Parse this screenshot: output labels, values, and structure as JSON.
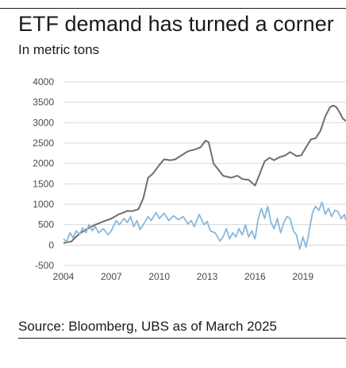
{
  "header": {
    "title": "ETF demand has turned a corner",
    "subtitle": "In metric tons"
  },
  "footer": {
    "source": "Source: Bloomberg, UBS as of March 2025"
  },
  "chart_data": {
    "type": "line",
    "title": "ETF demand has turned a corner",
    "subtitle": "In metric tons",
    "xlabel": "",
    "ylabel": "",
    "xlim": [
      2004,
      2021.7
    ],
    "ylim": [
      -500,
      4000
    ],
    "y_ticks": [
      "4000",
      "3500",
      "3000",
      "2500",
      "2000",
      "1500",
      "1000",
      "500",
      "0",
      "-500"
    ],
    "x_ticks": [
      "2004",
      "2007",
      "2010",
      "2013",
      "2016",
      "2019"
    ],
    "grid": "horizontal",
    "legend": "none",
    "series": [
      {
        "color": "#6e6e6e",
        "points": [
          [
            2004.0,
            50
          ],
          [
            2004.5,
            90
          ],
          [
            2004.8,
            210
          ],
          [
            2005.0,
            280
          ],
          [
            2005.5,
            400
          ],
          [
            2006.0,
            500
          ],
          [
            2006.5,
            580
          ],
          [
            2007.0,
            650
          ],
          [
            2007.5,
            760
          ],
          [
            2007.8,
            800
          ],
          [
            2008.0,
            840
          ],
          [
            2008.3,
            830
          ],
          [
            2008.7,
            880
          ],
          [
            2009.0,
            1150
          ],
          [
            2009.3,
            1650
          ],
          [
            2009.6,
            1750
          ],
          [
            2010.0,
            1960
          ],
          [
            2010.3,
            2100
          ],
          [
            2010.7,
            2080
          ],
          [
            2011.0,
            2100
          ],
          [
            2011.4,
            2200
          ],
          [
            2011.8,
            2300
          ],
          [
            2012.3,
            2350
          ],
          [
            2012.6,
            2400
          ],
          [
            2012.9,
            2560
          ],
          [
            2013.1,
            2520
          ],
          [
            2013.4,
            2000
          ],
          [
            2013.7,
            1850
          ],
          [
            2014.0,
            1700
          ],
          [
            2014.5,
            1650
          ],
          [
            2014.9,
            1700
          ],
          [
            2015.2,
            1620
          ],
          [
            2015.6,
            1600
          ],
          [
            2016.0,
            1460
          ],
          [
            2016.3,
            1750
          ],
          [
            2016.6,
            2050
          ],
          [
            2016.9,
            2140
          ],
          [
            2017.2,
            2080
          ],
          [
            2017.5,
            2150
          ],
          [
            2017.9,
            2200
          ],
          [
            2018.2,
            2280
          ],
          [
            2018.6,
            2180
          ],
          [
            2018.9,
            2200
          ],
          [
            2019.2,
            2400
          ],
          [
            2019.5,
            2590
          ],
          [
            2019.8,
            2620
          ],
          [
            2020.1,
            2800
          ],
          [
            2020.4,
            3150
          ],
          [
            2020.7,
            3380
          ],
          [
            2020.9,
            3420
          ],
          [
            2021.1,
            3380
          ],
          [
            2021.3,
            3250
          ],
          [
            2021.5,
            3100
          ],
          [
            2021.7,
            3040
          ]
        ]
      },
      {
        "color": "#88b8db",
        "points": [
          [
            2004.0,
            150
          ],
          [
            2004.2,
            80
          ],
          [
            2004.4,
            300
          ],
          [
            2004.6,
            180
          ],
          [
            2004.8,
            350
          ],
          [
            2005.0,
            250
          ],
          [
            2005.2,
            420
          ],
          [
            2005.4,
            300
          ],
          [
            2005.6,
            500
          ],
          [
            2005.8,
            350
          ],
          [
            2006.0,
            450
          ],
          [
            2006.2,
            300
          ],
          [
            2006.5,
            400
          ],
          [
            2006.8,
            250
          ],
          [
            2007.0,
            350
          ],
          [
            2007.3,
            600
          ],
          [
            2007.5,
            500
          ],
          [
            2007.8,
            650
          ],
          [
            2008.0,
            550
          ],
          [
            2008.2,
            700
          ],
          [
            2008.4,
            450
          ],
          [
            2008.6,
            600
          ],
          [
            2008.8,
            380
          ],
          [
            2009.0,
            500
          ],
          [
            2009.3,
            700
          ],
          [
            2009.5,
            600
          ],
          [
            2009.8,
            800
          ],
          [
            2010.0,
            650
          ],
          [
            2010.3,
            780
          ],
          [
            2010.6,
            600
          ],
          [
            2010.9,
            720
          ],
          [
            2011.2,
            620
          ],
          [
            2011.5,
            700
          ],
          [
            2011.8,
            520
          ],
          [
            2012.0,
            600
          ],
          [
            2012.2,
            450
          ],
          [
            2012.5,
            750
          ],
          [
            2012.8,
            500
          ],
          [
            2013.0,
            580
          ],
          [
            2013.2,
            350
          ],
          [
            2013.5,
            300
          ],
          [
            2013.8,
            100
          ],
          [
            2014.0,
            200
          ],
          [
            2014.2,
            400
          ],
          [
            2014.4,
            150
          ],
          [
            2014.6,
            300
          ],
          [
            2014.8,
            200
          ],
          [
            2015.0,
            400
          ],
          [
            2015.2,
            250
          ],
          [
            2015.4,
            500
          ],
          [
            2015.6,
            200
          ],
          [
            2015.8,
            350
          ],
          [
            2016.0,
            150
          ],
          [
            2016.2,
            650
          ],
          [
            2016.4,
            900
          ],
          [
            2016.6,
            650
          ],
          [
            2016.8,
            950
          ],
          [
            2017.0,
            550
          ],
          [
            2017.2,
            400
          ],
          [
            2017.4,
            650
          ],
          [
            2017.6,
            300
          ],
          [
            2017.8,
            550
          ],
          [
            2018.0,
            700
          ],
          [
            2018.2,
            650
          ],
          [
            2018.4,
            350
          ],
          [
            2018.6,
            250
          ],
          [
            2018.8,
            -100
          ],
          [
            2019.0,
            200
          ],
          [
            2019.2,
            -50
          ],
          [
            2019.4,
            350
          ],
          [
            2019.6,
            800
          ],
          [
            2019.8,
            950
          ],
          [
            2020.0,
            850
          ],
          [
            2020.2,
            1050
          ],
          [
            2020.4,
            750
          ],
          [
            2020.6,
            900
          ],
          [
            2020.8,
            700
          ],
          [
            2021.0,
            850
          ],
          [
            2021.2,
            820
          ],
          [
            2021.4,
            650
          ],
          [
            2021.6,
            750
          ],
          [
            2021.7,
            600
          ]
        ]
      }
    ]
  }
}
